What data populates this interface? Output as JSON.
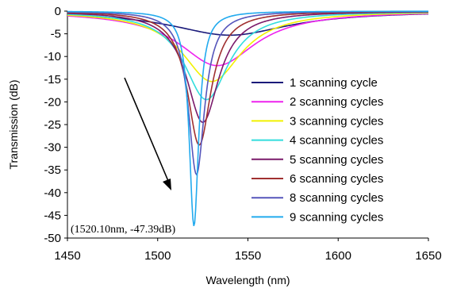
{
  "chart_data": {
    "type": "line",
    "xlabel": "Wavelength (nm)",
    "ylabel": "Transmission (dB)",
    "xlim": [
      1450,
      1650
    ],
    "ylim": [
      -50,
      0
    ],
    "xticks": [
      1450,
      1500,
      1550,
      1600,
      1650
    ],
    "yticks": [
      0,
      -5,
      -10,
      -15,
      -20,
      -25,
      -30,
      -35,
      -40,
      -45,
      -50
    ],
    "grid": false,
    "legend_position": "right",
    "annotation": "(1520.10nm, -47.39dB)",
    "series": [
      {
        "name": "1 scanning cycle",
        "color": "#1a1a7a",
        "center": 1540.0,
        "min": -5.3,
        "halfwidth": 40
      },
      {
        "name": "2 scanning cycles",
        "color": "#ee22ee",
        "center": 1533.0,
        "min": -12.0,
        "halfwidth": 26
      },
      {
        "name": "3 scanning cycles",
        "color": "#f2f200",
        "center": 1530.0,
        "min": -15.5,
        "halfwidth": 20
      },
      {
        "name": "4 scanning cycles",
        "color": "#33dddd",
        "center": 1527.0,
        "min": -19.5,
        "halfwidth": 15
      },
      {
        "name": "5 scanning cycles",
        "color": "#7a1a6a",
        "center": 1525.0,
        "min": -24.5,
        "halfwidth": 11
      },
      {
        "name": "6 scanning cycles",
        "color": "#a03030",
        "center": 1523.0,
        "min": -29.5,
        "halfwidth": 8
      },
      {
        "name": "8 scanning cycles",
        "color": "#5555bb",
        "center": 1521.5,
        "min": -36.0,
        "halfwidth": 5.5
      },
      {
        "name": "9 scanning cycles",
        "color": "#22aaee",
        "center": 1520.1,
        "min": -47.39,
        "halfwidth": 3.2
      }
    ]
  }
}
